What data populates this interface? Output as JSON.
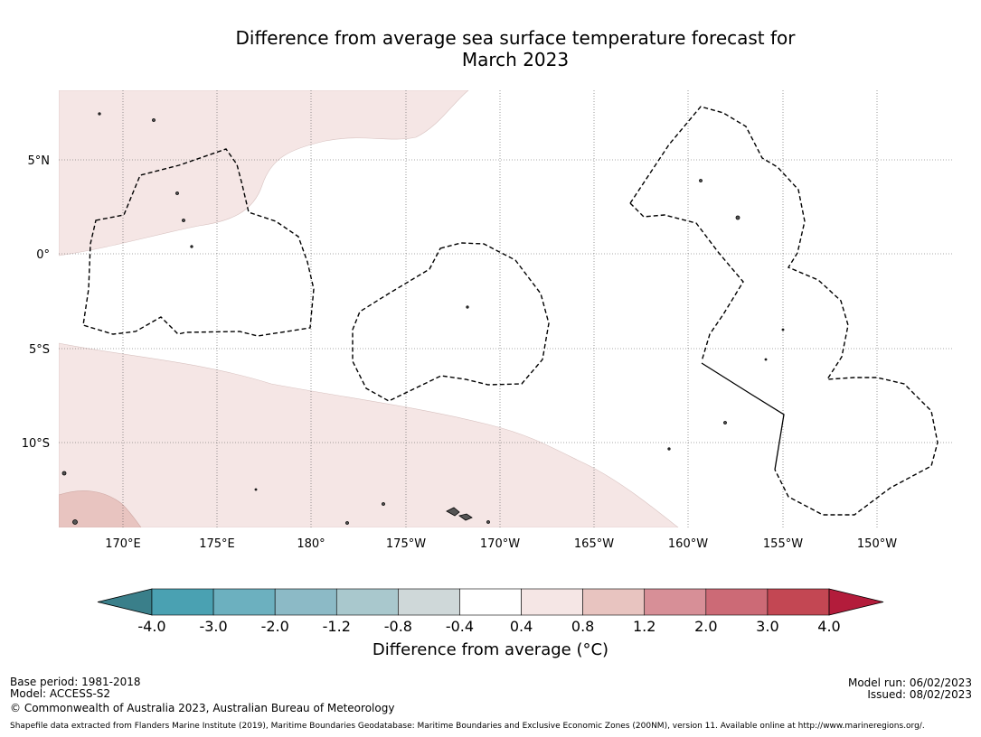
{
  "title_line1": "Difference from average sea surface temperature forecast for",
  "title_line2": "March 2023",
  "lat_labels": [
    "5°N",
    "0°",
    "5°S",
    "10°S"
  ],
  "lon_labels": [
    "170°E",
    "175°E",
    "180°",
    "175°W",
    "170°W",
    "165°W",
    "160°W",
    "155°W",
    "150°W"
  ],
  "colorbar": {
    "ticks": [
      "-4.0",
      "-3.0",
      "-2.0",
      "-1.2",
      "-0.8",
      "-0.4",
      "0.4",
      "0.8",
      "1.2",
      "2.0",
      "3.0",
      "4.0"
    ],
    "colors": [
      "#3a7f8a",
      "#4aa1b2",
      "#6cb0bf",
      "#8cbac6",
      "#a9c8cd",
      "#cfd8d9",
      "#ffffff",
      "#f5e6e5",
      "#e8c4c0",
      "#d78f97",
      "#cc6a76",
      "#c34753",
      "#b31c3b"
    ],
    "label": "Difference from average (°C)"
  },
  "footer": {
    "base_period": "Base period: 1981-2018",
    "model": "Model: ACCESS-S2",
    "copyright": "© Commonwealth of Australia 2023, Australian Bureau of Meteorology",
    "model_run": "Model run: 06/02/2023",
    "issued": "Issued: 08/02/2023",
    "shapefile": "Shapefile data extracted from Flanders Marine Institute (2019), Maritime Boundaries Geodatabase: Maritime Boundaries and Exclusive Economic Zones (200NM), version 11. Available online at http://www.marineregions.org/."
  }
}
